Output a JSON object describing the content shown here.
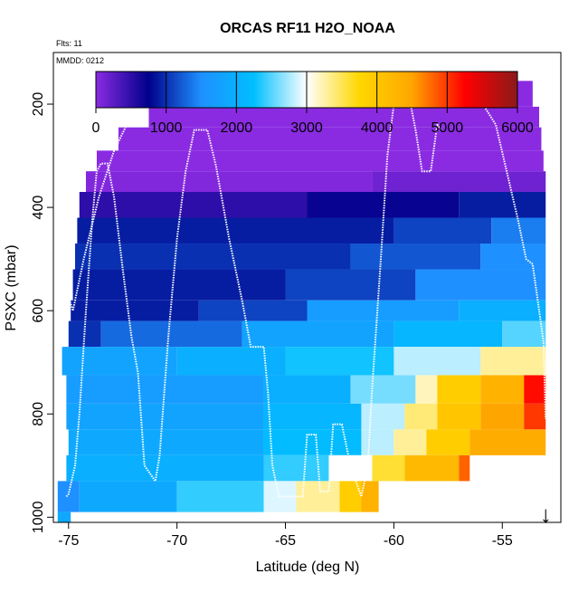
{
  "chart_data": {
    "type": "heatmap",
    "title": "ORCAS RF11 H2O_NOAA",
    "top_left_note": "Flts: 11",
    "inset_note": "MMDD: 0212",
    "xlabel": "Latitude (deg N)",
    "ylabel": "PSXC (mbar)",
    "xlim": [
      -75.7,
      -52.3
    ],
    "ylim": [
      1010,
      100
    ],
    "y_reversed": true,
    "x_ticks": [
      -75,
      -70,
      -65,
      -60,
      -55
    ],
    "y_ticks": [
      200,
      400,
      600,
      800,
      1000
    ],
    "colorbar": {
      "range": [
        0,
        6000
      ],
      "ticks": [
        0,
        1000,
        2000,
        3000,
        4000,
        5000,
        6000
      ],
      "colors": [
        "#8a2be2",
        "#00008b",
        "#1e90ff",
        "#00bfff",
        "#ffffff",
        "#ffd700",
        "#ffa500",
        "#ff0000",
        "#8b1a1a"
      ]
    },
    "marker": {
      "symbol": "↓",
      "lat": -53.0
    },
    "bands": [
      {
        "p": [
          155,
          205
        ],
        "segs": [
          [
            -71.3,
            -53.6,
            0
          ]
        ]
      },
      {
        "p": [
          205,
          245
        ],
        "segs": [
          [
            -71.3,
            -53.3,
            0
          ]
        ]
      },
      {
        "p": [
          245,
          290
        ],
        "segs": [
          [
            -72.7,
            -53.2,
            0
          ]
        ]
      },
      {
        "p": [
          290,
          330
        ],
        "segs": [
          [
            -73.7,
            -53.1,
            0
          ]
        ]
      },
      {
        "p": [
          330,
          370
        ],
        "segs": [
          [
            -74.2,
            -61.0,
            50
          ],
          [
            -61.0,
            -53.0,
            150
          ]
        ]
      },
      {
        "p": [
          370,
          420
        ],
        "segs": [
          [
            -74.5,
            -64.0,
            500
          ],
          [
            -64.0,
            -57.0,
            700
          ],
          [
            -57.0,
            -53.0,
            900
          ]
        ]
      },
      {
        "p": [
          420,
          470
        ],
        "segs": [
          [
            -74.6,
            -60.0,
            900
          ],
          [
            -60.0,
            -55.5,
            1100
          ],
          [
            -55.5,
            -53.0,
            1400
          ]
        ]
      },
      {
        "p": [
          470,
          520
        ],
        "segs": [
          [
            -74.7,
            -62.0,
            1000
          ],
          [
            -62.0,
            -56.0,
            1200
          ],
          [
            -56.0,
            -53.0,
            1500
          ]
        ]
      },
      {
        "p": [
          520,
          580
        ],
        "segs": [
          [
            -74.8,
            -65.0,
            900
          ],
          [
            -65.0,
            -59.0,
            1100
          ],
          [
            -59.0,
            -53.0,
            1500
          ]
        ]
      },
      {
        "p": [
          580,
          620
        ],
        "segs": [
          [
            -74.9,
            -69.0,
            900
          ],
          [
            -69.0,
            -64.0,
            1100
          ],
          [
            -64.0,
            -57.0,
            1700
          ],
          [
            -57.0,
            -53.0,
            2000
          ]
        ]
      },
      {
        "p": [
          620,
          670
        ],
        "segs": [
          [
            -75.0,
            -73.5,
            1000
          ],
          [
            -73.5,
            -67.0,
            1300
          ],
          [
            -67.0,
            -60.0,
            1800
          ],
          [
            -60.0,
            -55.0,
            2100
          ],
          [
            -55.0,
            -53.0,
            2500
          ]
        ]
      },
      {
        "p": [
          670,
          725
        ],
        "segs": [
          [
            -75.3,
            -70.0,
            1800
          ],
          [
            -70.0,
            -65.0,
            2000
          ],
          [
            -65.0,
            -60.0,
            2300
          ],
          [
            -60.0,
            -56.0,
            2800
          ],
          [
            -56.0,
            -53.0,
            3300
          ]
        ]
      },
      {
        "p": [
          725,
          780
        ],
        "segs": [
          [
            -75.1,
            -66.0,
            1700
          ],
          [
            -66.0,
            -62.0,
            2000
          ],
          [
            -62.0,
            -59.0,
            2600
          ],
          [
            -59.0,
            -58.0,
            3200
          ],
          [
            -58.0,
            -56.0,
            3900
          ],
          [
            -56.0,
            -54.0,
            4300
          ],
          [
            -54.0,
            -53.0,
            5200
          ]
        ]
      },
      {
        "p": [
          780,
          830
        ],
        "segs": [
          [
            -75.1,
            -66.0,
            1800
          ],
          [
            -66.0,
            -61.5,
            2100
          ],
          [
            -61.5,
            -59.5,
            2800
          ],
          [
            -59.5,
            -58.0,
            3400
          ],
          [
            -58.0,
            -56.0,
            4000
          ],
          [
            -56.0,
            -54.0,
            4500
          ],
          [
            -54.0,
            -53.0,
            5000
          ]
        ]
      },
      {
        "p": [
          830,
          880
        ],
        "segs": [
          [
            -75.0,
            -66.0,
            1900
          ],
          [
            -66.0,
            -61.5,
            2200
          ],
          [
            -61.5,
            -60.0,
            2800
          ],
          [
            -60.0,
            -58.5,
            3300
          ],
          [
            -58.5,
            -56.5,
            3900
          ],
          [
            -56.5,
            -53.0,
            4400
          ]
        ]
      },
      {
        "p": [
          880,
          930
        ],
        "segs": [
          [
            -75.1,
            -66.0,
            2000
          ],
          [
            -66.0,
            -63.0,
            2400
          ],
          [
            -63.0,
            -61.0,
            3000
          ],
          [
            -61.0,
            -59.5,
            3600
          ],
          [
            -59.5,
            -57.0,
            4200
          ],
          [
            -57.0,
            -56.5,
            4800
          ]
        ]
      },
      {
        "p": [
          930,
          990
        ],
        "segs": [
          [
            -75.5,
            -74.5,
            1500
          ],
          [
            -74.5,
            -70.0,
            1900
          ],
          [
            -70.0,
            -66.0,
            2400
          ],
          [
            -66.0,
            -64.5,
            2900
          ],
          [
            -64.5,
            -62.5,
            3300
          ],
          [
            -62.5,
            -61.5,
            3900
          ],
          [
            -61.5,
            -60.7,
            4300
          ]
        ]
      },
      {
        "p": [
          990,
          1010
        ],
        "segs": [
          [
            -75.5,
            -74.9,
            1900
          ]
        ]
      }
    ],
    "flight_track": [
      [
        -75.1,
        960
      ],
      [
        -75.0,
        955
      ],
      [
        -74.7,
        900
      ],
      [
        -74.5,
        800
      ],
      [
        -74.2,
        600
      ],
      [
        -73.9,
        420
      ],
      [
        -73.7,
        330
      ],
      [
        -73.5,
        315
      ],
      [
        -73.2,
        315
      ],
      [
        -72.9,
        380
      ],
      [
        -72.5,
        520
      ],
      [
        -72.1,
        650
      ],
      [
        -71.8,
        720
      ],
      [
        -71.5,
        900
      ],
      [
        -71.0,
        930
      ],
      [
        -70.8,
        880
      ],
      [
        -70.4,
        650
      ],
      [
        -70.0,
        460
      ],
      [
        -69.6,
        330
      ],
      [
        -69.2,
        250
      ],
      [
        -68.6,
        250
      ],
      [
        -68.2,
        320
      ],
      [
        -67.6,
        460
      ],
      [
        -67.0,
        580
      ],
      [
        -66.6,
        670
      ],
      [
        -66.0,
        670
      ],
      [
        -65.8,
        760
      ],
      [
        -65.6,
        900
      ],
      [
        -65.3,
        960
      ],
      [
        -64.8,
        960
      ],
      [
        -64.2,
        960
      ],
      [
        -64.0,
        840
      ],
      [
        -63.6,
        840
      ],
      [
        -63.4,
        950
      ],
      [
        -63.0,
        950
      ],
      [
        -62.8,
        820
      ],
      [
        -62.4,
        820
      ],
      [
        -62.0,
        900
      ],
      [
        -61.5,
        960
      ],
      [
        -61.2,
        900
      ],
      [
        -61.0,
        750
      ],
      [
        -60.6,
        500
      ],
      [
        -60.3,
        300
      ],
      [
        -60.0,
        200
      ],
      [
        -59.5,
        185
      ],
      [
        -59.3,
        185
      ],
      [
        -59.0,
        250
      ],
      [
        -58.7,
        330
      ],
      [
        -58.3,
        330
      ],
      [
        -58.0,
        240
      ],
      [
        -57.8,
        250
      ]
    ],
    "flight_track_2": [
      [
        -75.1,
        560
      ],
      [
        -74.8,
        600
      ],
      [
        -74.3,
        500
      ],
      [
        -73.6,
        380
      ],
      [
        -72.9,
        290
      ],
      [
        -72.2,
        230
      ],
      [
        -71.4,
        180
      ],
      [
        -70.0,
        180
      ],
      [
        -67.0,
        180
      ],
      [
        -64.0,
        180
      ],
      [
        -61.0,
        180
      ],
      [
        -60.2,
        180
      ],
      [
        -59.6,
        188
      ],
      [
        -58.0,
        188
      ],
      [
        -56.5,
        188
      ],
      [
        -55.9,
        200
      ],
      [
        -55.3,
        240
      ],
      [
        -54.8,
        330
      ],
      [
        -54.3,
        420
      ],
      [
        -53.9,
        500
      ],
      [
        -53.6,
        510
      ],
      [
        -53.3,
        600
      ],
      [
        -53.1,
        660
      ],
      [
        -53.0,
        810
      ]
    ]
  }
}
